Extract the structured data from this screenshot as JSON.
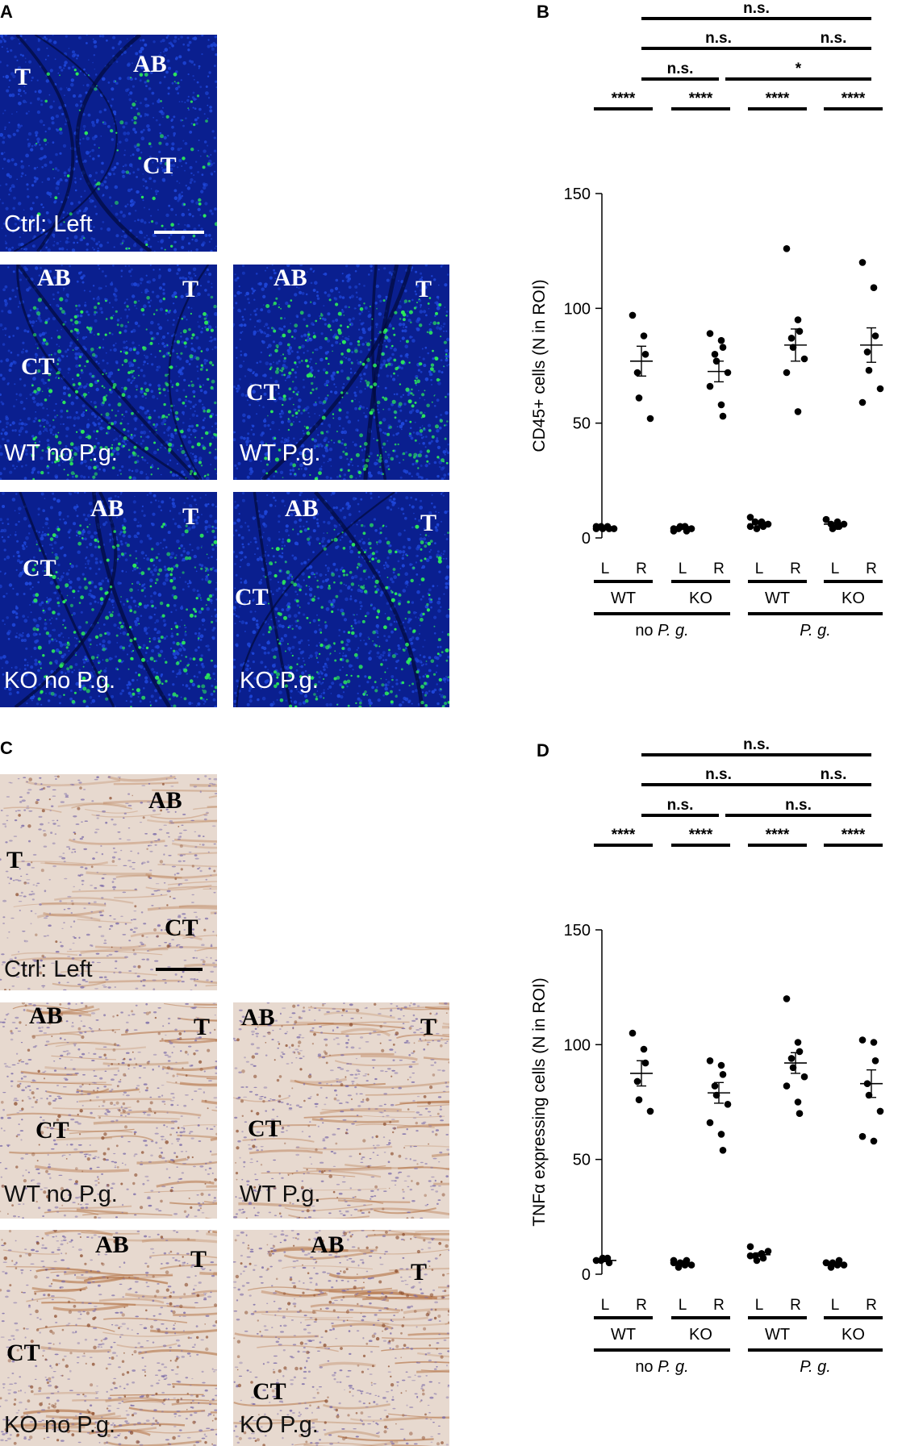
{
  "panels": {
    "A": {
      "letter": "A",
      "images": [
        {
          "id": "a1",
          "labels": {
            "T": "T",
            "AB": "AB",
            "CT": "CT"
          },
          "caption": "Ctrl: Left",
          "scale_bar": true
        },
        {
          "id": "a2",
          "labels": {
            "T": "T",
            "AB": "AB",
            "CT": "CT"
          },
          "caption": "WT no P.g."
        },
        {
          "id": "a3",
          "labels": {
            "T": "T",
            "AB": "AB",
            "CT": "CT"
          },
          "caption": "WT P.g."
        },
        {
          "id": "a4",
          "labels": {
            "T": "T",
            "AB": "AB",
            "CT": "CT"
          },
          "caption": "KO no P.g."
        },
        {
          "id": "a5",
          "labels": {
            "T": "T",
            "AB": "AB",
            "CT": "CT"
          },
          "caption": "KO P.g."
        }
      ]
    },
    "C": {
      "letter": "C",
      "images": [
        {
          "id": "c1",
          "labels": {
            "T": "T",
            "AB": "AB",
            "CT": "CT"
          },
          "caption": "Ctrl: Left",
          "scale_bar": true
        },
        {
          "id": "c2",
          "labels": {
            "T": "T",
            "AB": "AB",
            "CT": "CT"
          },
          "caption": "WT no P.g."
        },
        {
          "id": "c3",
          "labels": {
            "T": "T",
            "AB": "AB",
            "CT": "CT"
          },
          "caption": "WT P.g."
        },
        {
          "id": "c4",
          "labels": {
            "T": "T",
            "AB": "AB",
            "CT": "CT"
          },
          "caption": "KO no P.g."
        },
        {
          "id": "c5",
          "labels": {
            "T": "T",
            "AB": "AB",
            "CT": "CT"
          },
          "caption": "KO P.g."
        }
      ]
    },
    "B": {
      "letter": "B"
    },
    "D": {
      "letter": "D"
    }
  },
  "colors": {
    "fluo_bg": "#0a1f8f",
    "fluo_nuclei": "#1e46d8",
    "fluo_signal": "#2bea5a",
    "ihc_bg": "#e7d9cf",
    "ihc_stain": "#b5764a",
    "ihc_nuclei": "#7a6aa8"
  },
  "chart_data": [
    {
      "type": "scatter",
      "panel": "B",
      "ylabel": "CD45+ cells (N in ROI)",
      "ylim": [
        0,
        150
      ],
      "yticks": [
        0,
        50,
        100,
        150
      ],
      "sides": [
        "L",
        "R",
        "L",
        "R",
        "L",
        "R",
        "L",
        "R"
      ],
      "genotypes": [
        "WT",
        "KO",
        "WT",
        "KO"
      ],
      "conditions": [
        {
          "prefix": "no ",
          "italic": "P. g."
        },
        {
          "prefix": "",
          "italic": "P. g."
        }
      ],
      "groups": [
        {
          "side": "L",
          "genotype": "WT",
          "condition": "no P. g.",
          "values": [
            4,
            5,
            4,
            5,
            4,
            4,
            5
          ],
          "mean": 4.5,
          "sem": 0.5
        },
        {
          "side": "R",
          "genotype": "WT",
          "condition": "no P. g.",
          "values": [
            97,
            88,
            80,
            72,
            61,
            52
          ],
          "mean": 77,
          "sem": 6.5
        },
        {
          "side": "L",
          "genotype": "KO",
          "condition": "no P. g.",
          "values": [
            4,
            5,
            3,
            4,
            5,
            4,
            3,
            5,
            4
          ],
          "mean": 4.2,
          "sem": 0.5
        },
        {
          "side": "R",
          "genotype": "KO",
          "condition": "no P. g.",
          "values": [
            89,
            86,
            83,
            80,
            77,
            72,
            66,
            58,
            53
          ],
          "mean": 72.5,
          "sem": 4.5
        },
        {
          "side": "L",
          "genotype": "WT",
          "condition": "P. g.",
          "values": [
            9,
            6,
            5,
            7,
            4,
            6,
            5,
            7,
            6
          ],
          "mean": 6,
          "sem": 0.7
        },
        {
          "side": "R",
          "genotype": "WT",
          "condition": "P. g.",
          "values": [
            126,
            95,
            90,
            87,
            83,
            78,
            72,
            55
          ],
          "mean": 84,
          "sem": 7
        },
        {
          "side": "L",
          "genotype": "KO",
          "condition": "P. g.",
          "values": [
            8,
            7,
            5,
            6,
            4,
            6,
            8,
            5
          ],
          "mean": 6,
          "sem": 0.6
        },
        {
          "side": "R",
          "genotype": "KO",
          "condition": "P. g.",
          "values": [
            120,
            109,
            88,
            81,
            73,
            65,
            59
          ],
          "mean": 84,
          "sem": 7.5
        }
      ],
      "comparisons": [
        {
          "from": 0,
          "to": 1,
          "label": "****"
        },
        {
          "from": 2,
          "to": 3,
          "label": "****"
        },
        {
          "from": 4,
          "to": 5,
          "label": "****"
        },
        {
          "from": 6,
          "to": 7,
          "label": "****"
        },
        {
          "from": 1,
          "to": 3,
          "label": "n.s."
        },
        {
          "from": 3,
          "to": 7,
          "label": "*"
        },
        {
          "from": 1,
          "to": 5,
          "label": "n.s."
        },
        {
          "from": 5,
          "to": 7,
          "label": "n.s."
        },
        {
          "from": 1,
          "to": 7,
          "label": "n.s."
        }
      ]
    },
    {
      "type": "scatter",
      "panel": "D",
      "ylabel": "TNFα expressing cells (N in ROI)",
      "ylim": [
        0,
        150
      ],
      "yticks": [
        0,
        50,
        100,
        150
      ],
      "sides": [
        "L",
        "R",
        "L",
        "R",
        "L",
        "R",
        "L",
        "R"
      ],
      "genotypes": [
        "WT",
        "KO",
        "WT",
        "KO"
      ],
      "conditions": [
        {
          "prefix": "no ",
          "italic": "P. g."
        },
        {
          "prefix": "",
          "italic": "P. g."
        }
      ],
      "groups": [
        {
          "side": "L",
          "genotype": "WT",
          "condition": "no P. g.",
          "values": [
            6,
            7,
            5,
            6,
            7
          ],
          "mean": 6,
          "sem": 0.5
        },
        {
          "side": "R",
          "genotype": "WT",
          "condition": "no P. g.",
          "values": [
            105,
            98,
            92,
            84,
            76,
            71
          ],
          "mean": 87.5,
          "sem": 5.5
        },
        {
          "side": "L",
          "genotype": "KO",
          "condition": "no P. g.",
          "values": [
            5,
            4,
            6,
            3,
            5,
            4,
            6,
            5
          ],
          "mean": 4.5,
          "sem": 0.5
        },
        {
          "side": "R",
          "genotype": "KO",
          "condition": "no P. g.",
          "values": [
            93,
            91,
            87,
            82,
            78,
            74,
            66,
            61,
            54
          ],
          "mean": 79,
          "sem": 4.5
        },
        {
          "side": "L",
          "genotype": "WT",
          "condition": "P. g.",
          "values": [
            12,
            9,
            7,
            8,
            6,
            10,
            8,
            9
          ],
          "mean": 8.5,
          "sem": 0.8
        },
        {
          "side": "R",
          "genotype": "WT",
          "condition": "P. g.",
          "values": [
            120,
            101,
            97,
            94,
            90,
            86,
            82,
            75,
            70
          ],
          "mean": 92,
          "sem": 4.5
        },
        {
          "side": "L",
          "genotype": "KO",
          "condition": "P. g.",
          "values": [
            5,
            4,
            6,
            3,
            5,
            4,
            5
          ],
          "mean": 4.5,
          "sem": 0.4
        },
        {
          "side": "R",
          "genotype": "KO",
          "condition": "P. g.",
          "values": [
            102,
            101,
            93,
            83,
            78,
            71,
            60,
            58
          ],
          "mean": 83,
          "sem": 6
        }
      ],
      "comparisons": [
        {
          "from": 0,
          "to": 1,
          "label": "****"
        },
        {
          "from": 2,
          "to": 3,
          "label": "****"
        },
        {
          "from": 4,
          "to": 5,
          "label": "****"
        },
        {
          "from": 6,
          "to": 7,
          "label": "****"
        },
        {
          "from": 1,
          "to": 3,
          "label": "n.s."
        },
        {
          "from": 3,
          "to": 7,
          "label": "n.s."
        },
        {
          "from": 1,
          "to": 5,
          "label": "n.s."
        },
        {
          "from": 5,
          "to": 7,
          "label": "n.s."
        },
        {
          "from": 1,
          "to": 7,
          "label": "n.s."
        }
      ]
    }
  ]
}
